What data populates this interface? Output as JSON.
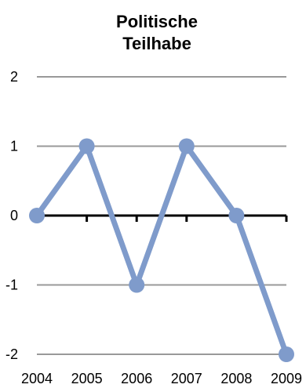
{
  "chart_data": {
    "type": "line",
    "title": "Politische\nTeilhabe",
    "xlabel": "",
    "ylabel": "",
    "categories": [
      "2004",
      "2005",
      "2006",
      "2007",
      "2008",
      "2009"
    ],
    "series": [
      {
        "values": [
          0,
          1,
          -1,
          1,
          0,
          -2
        ]
      }
    ],
    "ylim": [
      -2,
      2
    ],
    "yticks": [
      "2",
      "1",
      "0",
      "-1",
      "-2"
    ],
    "grid": true,
    "legend": "none",
    "colors": {
      "line": "#7F9BCB",
      "grid": "#999999",
      "zero_axis": "#000000"
    }
  }
}
